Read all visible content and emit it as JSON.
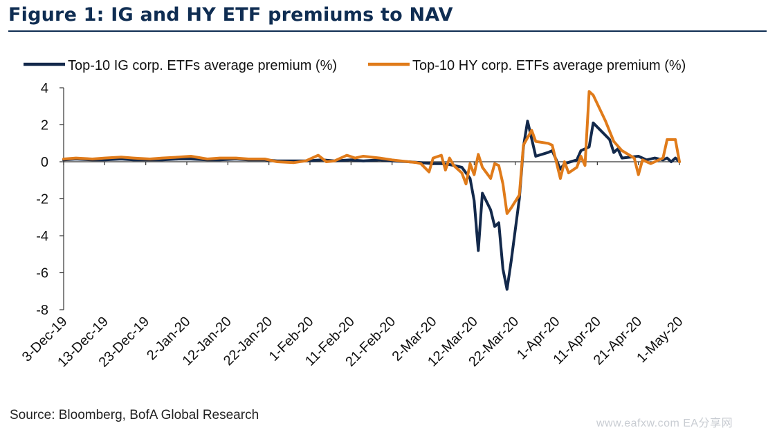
{
  "figure": {
    "title": "Figure 1: IG and HY ETF premiums to NAV",
    "source": "Source: Bloomberg, BofA Global Research",
    "watermark": "www.eafxw.com   EA分享网"
  },
  "chart_data": {
    "type": "line",
    "title": "Figure 1: IG and HY ETF premiums to NAV",
    "xlabel": "",
    "ylabel": "",
    "ylim": [
      -8,
      4
    ],
    "yticks": [
      4,
      2,
      0,
      -2,
      -4,
      -6,
      -8
    ],
    "xlim": [
      "2019-12-03",
      "2020-05-01"
    ],
    "xticks": [
      "3-Dec-19",
      "13-Dec-19",
      "23-Dec-19",
      "2-Jan-20",
      "12-Jan-20",
      "22-Jan-20",
      "1-Feb-20",
      "11-Feb-20",
      "21-Feb-20",
      "2-Mar-20",
      "12-Mar-20",
      "22-Mar-20",
      "1-Apr-20",
      "11-Apr-20",
      "21-Apr-20",
      "1-May-20"
    ],
    "grid": false,
    "legend_position": "top",
    "series": [
      {
        "name": "Top-10 IG corp. ETFs average premium (%)",
        "color": "#13294b",
        "points": [
          [
            "2019-12-03",
            0.1
          ],
          [
            "2019-12-06",
            0.15
          ],
          [
            "2019-12-10",
            0.1
          ],
          [
            "2019-12-13",
            0.1
          ],
          [
            "2019-12-17",
            0.15
          ],
          [
            "2019-12-20",
            0.1
          ],
          [
            "2019-12-24",
            0.1
          ],
          [
            "2019-12-27",
            0.1
          ],
          [
            "2019-12-31",
            0.15
          ],
          [
            "2020-01-03",
            0.15
          ],
          [
            "2020-01-07",
            0.1
          ],
          [
            "2020-01-10",
            0.1
          ],
          [
            "2020-01-14",
            0.15
          ],
          [
            "2020-01-17",
            0.1
          ],
          [
            "2020-01-21",
            0.1
          ],
          [
            "2020-01-24",
            0.05
          ],
          [
            "2020-01-28",
            0.05
          ],
          [
            "2020-01-31",
            0.05
          ],
          [
            "2020-02-04",
            0.1
          ],
          [
            "2020-02-07",
            0.05
          ],
          [
            "2020-02-11",
            0.1
          ],
          [
            "2020-02-14",
            0.05
          ],
          [
            "2020-02-18",
            0.1
          ],
          [
            "2020-02-21",
            0.05
          ],
          [
            "2020-02-25",
            0.0
          ],
          [
            "2020-02-28",
            -0.05
          ],
          [
            "2020-03-02",
            -0.1
          ],
          [
            "2020-03-04",
            -0.1
          ],
          [
            "2020-03-06",
            -0.15
          ],
          [
            "2020-03-09",
            -0.3
          ],
          [
            "2020-03-11",
            -0.9
          ],
          [
            "2020-03-12",
            -2.1
          ],
          [
            "2020-03-13",
            -4.8
          ],
          [
            "2020-03-14",
            -1.7
          ],
          [
            "2020-03-16",
            -2.6
          ],
          [
            "2020-03-17",
            -3.5
          ],
          [
            "2020-03-18",
            -3.3
          ],
          [
            "2020-03-19",
            -5.8
          ],
          [
            "2020-03-20",
            -6.9
          ],
          [
            "2020-03-21",
            -5.4
          ],
          [
            "2020-03-23",
            -2.0
          ],
          [
            "2020-03-24",
            0.8
          ],
          [
            "2020-03-25",
            2.2
          ],
          [
            "2020-03-27",
            0.3
          ],
          [
            "2020-03-30",
            0.5
          ],
          [
            "2020-03-31",
            0.6
          ],
          [
            "2020-04-02",
            -0.4
          ],
          [
            "2020-04-03",
            -0.1
          ],
          [
            "2020-04-06",
            0.1
          ],
          [
            "2020-04-07",
            0.6
          ],
          [
            "2020-04-09",
            0.8
          ],
          [
            "2020-04-10",
            2.1
          ],
          [
            "2020-04-14",
            1.2
          ],
          [
            "2020-04-15",
            0.5
          ],
          [
            "2020-04-16",
            0.7
          ],
          [
            "2020-04-17",
            0.2
          ],
          [
            "2020-04-21",
            0.3
          ],
          [
            "2020-04-23",
            0.1
          ],
          [
            "2020-04-25",
            0.2
          ],
          [
            "2020-04-27",
            0.1
          ],
          [
            "2020-04-28",
            0.2
          ],
          [
            "2020-04-29",
            0.0
          ],
          [
            "2020-04-30",
            0.2
          ],
          [
            "2020-05-01",
            0.0
          ]
        ]
      },
      {
        "name": "Top-10 HY corp. ETFs average premium (%)",
        "color": "#e07b1a",
        "points": [
          [
            "2019-12-03",
            0.15
          ],
          [
            "2019-12-06",
            0.2
          ],
          [
            "2019-12-10",
            0.15
          ],
          [
            "2019-12-13",
            0.2
          ],
          [
            "2019-12-17",
            0.25
          ],
          [
            "2019-12-20",
            0.2
          ],
          [
            "2019-12-24",
            0.15
          ],
          [
            "2019-12-27",
            0.2
          ],
          [
            "2019-12-31",
            0.25
          ],
          [
            "2020-01-03",
            0.3
          ],
          [
            "2020-01-07",
            0.15
          ],
          [
            "2020-01-10",
            0.2
          ],
          [
            "2020-01-14",
            0.2
          ],
          [
            "2020-01-17",
            0.15
          ],
          [
            "2020-01-21",
            0.15
          ],
          [
            "2020-01-24",
            0.0
          ],
          [
            "2020-01-28",
            -0.05
          ],
          [
            "2020-01-31",
            0.05
          ],
          [
            "2020-02-03",
            0.35
          ],
          [
            "2020-02-05",
            0.0
          ],
          [
            "2020-02-07",
            0.05
          ],
          [
            "2020-02-10",
            0.35
          ],
          [
            "2020-02-12",
            0.2
          ],
          [
            "2020-02-14",
            0.3
          ],
          [
            "2020-02-18",
            0.2
          ],
          [
            "2020-02-21",
            0.1
          ],
          [
            "2020-02-25",
            0.0
          ],
          [
            "2020-02-27",
            -0.05
          ],
          [
            "2020-02-28",
            -0.1
          ],
          [
            "2020-03-01",
            -0.55
          ],
          [
            "2020-03-02",
            0.2
          ],
          [
            "2020-03-04",
            0.35
          ],
          [
            "2020-03-05",
            -0.45
          ],
          [
            "2020-03-06",
            0.2
          ],
          [
            "2020-03-07",
            -0.2
          ],
          [
            "2020-03-09",
            -0.6
          ],
          [
            "2020-03-10",
            -1.2
          ],
          [
            "2020-03-11",
            -0.1
          ],
          [
            "2020-03-12",
            -0.7
          ],
          [
            "2020-03-13",
            0.4
          ],
          [
            "2020-03-14",
            -0.3
          ],
          [
            "2020-03-16",
            -0.9
          ],
          [
            "2020-03-17",
            -0.1
          ],
          [
            "2020-03-18",
            -0.2
          ],
          [
            "2020-03-19",
            -1.2
          ],
          [
            "2020-03-20",
            -2.8
          ],
          [
            "2020-03-21",
            -2.5
          ],
          [
            "2020-03-23",
            -1.8
          ],
          [
            "2020-03-24",
            0.9
          ],
          [
            "2020-03-25",
            1.3
          ],
          [
            "2020-03-26",
            1.7
          ],
          [
            "2020-03-27",
            1.1
          ],
          [
            "2020-03-30",
            1.0
          ],
          [
            "2020-03-31",
            0.9
          ],
          [
            "2020-04-01",
            0.0
          ],
          [
            "2020-04-02",
            -0.9
          ],
          [
            "2020-04-03",
            0.0
          ],
          [
            "2020-04-04",
            -0.6
          ],
          [
            "2020-04-06",
            -0.3
          ],
          [
            "2020-04-07",
            0.3
          ],
          [
            "2020-04-08",
            -0.2
          ],
          [
            "2020-04-09",
            3.8
          ],
          [
            "2020-04-10",
            3.6
          ],
          [
            "2020-04-13",
            2.2
          ],
          [
            "2020-04-15",
            1.1
          ],
          [
            "2020-04-17",
            0.6
          ],
          [
            "2020-04-20",
            0.2
          ],
          [
            "2020-04-21",
            -0.7
          ],
          [
            "2020-04-22",
            0.1
          ],
          [
            "2020-04-24",
            -0.1
          ],
          [
            "2020-04-27",
            0.2
          ],
          [
            "2020-04-28",
            1.2
          ],
          [
            "2020-04-30",
            1.2
          ],
          [
            "2020-05-01",
            0.0
          ]
        ]
      }
    ]
  }
}
